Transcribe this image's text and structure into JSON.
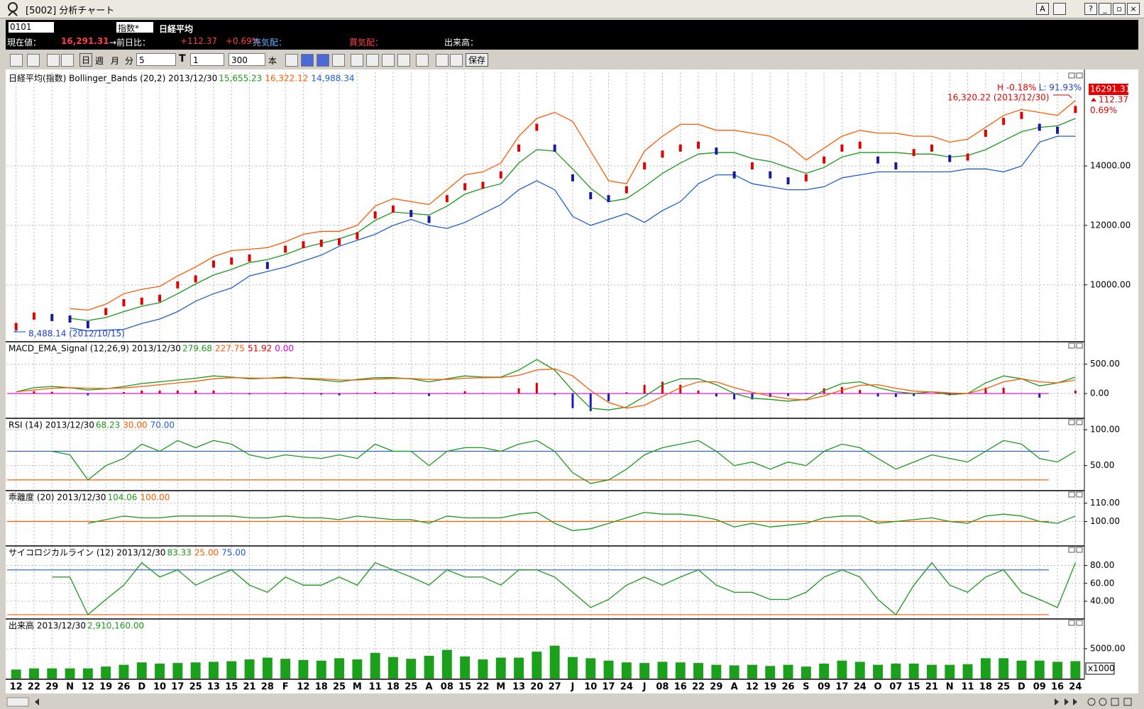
{
  "window": {
    "title": "[5002] 分析チャート",
    "buttons": [
      "A",
      "?"
    ]
  },
  "infobar": {
    "code": "0101",
    "index_select": "指数*",
    "name": "日経平均",
    "price_label": "現在値：",
    "price": "16,291.31",
    "change_label": "→前日比：",
    "change": "+112.37",
    "change_pct": "+0.69%",
    "ask_label": "売気配：",
    "bid_label": "買気配：",
    "volume_label": "出来高："
  },
  "toolbar": {
    "day": "日",
    "week": "週",
    "month": "月",
    "minute": "分",
    "minute_value": "5",
    "t_icon": "T",
    "t_value": "1",
    "count": "300",
    "count_unit": "本",
    "save": "保存"
  },
  "chart_data": [
    {
      "type": "line",
      "title": "日経平均(指数) Bollinger_Bands (20,2) 2013/12/30",
      "header_values": [
        {
          "label": "15,655.23",
          "color": "#1a9a1a"
        },
        {
          "label": "16,322.12",
          "color": "#ff5a00"
        },
        {
          "label": "14,988.34",
          "color": "#1e5fd0"
        }
      ],
      "annotations": [
        {
          "label": "H -0.18%",
          "color": "#e00000"
        },
        {
          "label": "L: 91.93%",
          "color": "#1e3fd0"
        },
        {
          "label": "16,320.22 (2013/12/30)",
          "color": "#e00000"
        },
        {
          "label": "8,488.14 (2012/10/15)",
          "color": "#1e3fd0"
        }
      ],
      "price_tag": "16291.31",
      "tag_change": "112.37",
      "tag_pct": "0.69%",
      "ylim": [
        8110,
        17150
      ],
      "yticks": [
        {
          "value": 10000,
          "label": "10000.00"
        },
        {
          "value": 12000,
          "label": "12000.00"
        },
        {
          "value": 14000,
          "label": "14000.00"
        }
      ],
      "grid": true,
      "series": [
        {
          "type": "line",
          "color": "#ff5a00",
          "values": [
            null,
            null,
            null,
            9200,
            9150,
            9350,
            9700,
            9850,
            9950,
            10300,
            10600,
            10950,
            11150,
            11200,
            11250,
            11450,
            11700,
            11800,
            11800,
            12000,
            12650,
            12900,
            12800,
            12700,
            13200,
            13700,
            13800,
            14100,
            15000,
            15600,
            15800,
            15500,
            14500,
            13500,
            13400,
            14500,
            15000,
            15400,
            15400,
            15200,
            15200,
            15100,
            15000,
            14700,
            14200,
            14600,
            15000,
            15200,
            15100,
            15100,
            15000,
            15000,
            14800,
            14900,
            15300,
            15700,
            15900,
            15800,
            15700,
            16200
          ]
        },
        {
          "type": "line",
          "color": "#1e5fd0",
          "values": [
            null,
            null,
            null,
            8550,
            8450,
            8480,
            8500,
            8700,
            8850,
            9100,
            9450,
            9700,
            9900,
            10300,
            10450,
            10600,
            10800,
            11000,
            11300,
            11500,
            11700,
            12000,
            12200,
            12000,
            11900,
            12100,
            12400,
            12700,
            13200,
            13500,
            13200,
            12300,
            12000,
            12200,
            12400,
            12100,
            12500,
            12800,
            13400,
            13700,
            13700,
            13400,
            13300,
            13200,
            13200,
            13300,
            13600,
            13700,
            13800,
            13800,
            13800,
            13800,
            13800,
            13900,
            13900,
            13800,
            14000,
            14800,
            15000,
            15000
          ]
        },
        {
          "type": "line",
          "color": "#1a9a1a",
          "values": [
            null,
            null,
            null,
            8870,
            8800,
            8900,
            9100,
            9280,
            9400,
            9700,
            10030,
            10330,
            10520,
            10750,
            10850,
            11020,
            11250,
            11400,
            11550,
            11750,
            12170,
            12450,
            12400,
            12350,
            12650,
            13050,
            13250,
            13400,
            14100,
            14550,
            14500,
            13900,
            13250,
            12800,
            12900,
            13300,
            13750,
            14100,
            14400,
            14450,
            14450,
            14250,
            14150,
            13950,
            13750,
            13950,
            14300,
            14450,
            14450,
            14450,
            14400,
            14400,
            14300,
            14350,
            14550,
            14850,
            15150,
            15300,
            15350,
            15600
          ]
        },
        {
          "type": "point",
          "color": "#e00000",
          "negative_color": "#1a1aa0",
          "values": [
            8600,
            8950,
            8900,
            8850,
            8660,
            9100,
            9400,
            9450,
            9550,
            10000,
            10200,
            10700,
            10800,
            10900,
            10650,
            11200,
            11350,
            11400,
            11450,
            11650,
            12350,
            12550,
            12400,
            12200,
            12900,
            13300,
            13350,
            13700,
            14600,
            15300,
            14600,
            13600,
            13000,
            12900,
            13200,
            14000,
            14400,
            14600,
            14700,
            14500,
            13700,
            14000,
            13700,
            13500,
            13600,
            14200,
            14600,
            14700,
            14200,
            14000,
            14450,
            14600,
            14250,
            14300,
            15100,
            15500,
            15700,
            15300,
            15200,
            15900
          ]
        }
      ]
    },
    {
      "type": "line",
      "title": "MACD_EMA_Signal (12,26,9) 2013/12/30",
      "header_values": [
        {
          "label": "279.68",
          "color": "#1a9a1a"
        },
        {
          "label": "227.75",
          "color": "#ff5a00"
        },
        {
          "label": "51.92",
          "color": "#e00000"
        }
      ],
      "levels": [
        {
          "value": 0,
          "label": "0.00",
          "color": "#e000e0"
        }
      ],
      "ylim": [
        -410,
        870
      ],
      "yticks": [
        {
          "value": 0,
          "label": "0.00"
        },
        {
          "value": 500,
          "label": "500.00"
        }
      ],
      "grid": true,
      "series": [
        {
          "type": "bar",
          "color": "#e00000",
          "negative_color": "#1a1acc",
          "values": [
            0,
            40,
            30,
            0,
            -30,
            -5,
            25,
            50,
            50,
            50,
            50,
            50,
            10,
            -15,
            0,
            15,
            -10,
            -20,
            -30,
            10,
            25,
            15,
            -5,
            -40,
            10,
            40,
            10,
            5,
            90,
            180,
            -20,
            -250,
            -300,
            -130,
            20,
            150,
            200,
            150,
            50,
            -50,
            -100,
            -100,
            -60,
            -40,
            10,
            90,
            110,
            60,
            -50,
            -60,
            -40,
            0,
            -30,
            0,
            100,
            100,
            0,
            -70,
            0,
            50
          ]
        },
        {
          "type": "line",
          "color": "#1a9a1a",
          "values": [
            30,
            100,
            120,
            100,
            60,
            80,
            120,
            170,
            200,
            230,
            260,
            300,
            280,
            250,
            260,
            280,
            250,
            230,
            200,
            240,
            270,
            270,
            250,
            200,
            250,
            300,
            280,
            280,
            400,
            580,
            400,
            50,
            -250,
            -280,
            -230,
            -50,
            150,
            250,
            250,
            150,
            0,
            -80,
            -100,
            -130,
            -100,
            50,
            170,
            200,
            100,
            30,
            0,
            30,
            -20,
            0,
            180,
            300,
            250,
            130,
            180,
            280
          ]
        },
        {
          "type": "line",
          "color": "#ff5a00",
          "values": [
            30,
            60,
            90,
            100,
            90,
            85,
            95,
            120,
            150,
            180,
            210,
            250,
            270,
            265,
            260,
            265,
            260,
            250,
            230,
            230,
            245,
            255,
            255,
            240,
            240,
            260,
            270,
            275,
            310,
            400,
            420,
            300,
            50,
            -150,
            -250,
            -200,
            -50,
            100,
            200,
            200,
            100,
            20,
            -40,
            -90,
            -110,
            -40,
            60,
            140,
            150,
            90,
            40,
            30,
            10,
            0,
            80,
            200,
            250,
            200,
            180,
            230
          ]
        }
      ]
    },
    {
      "type": "line",
      "title": "RSI (14) 2013/12/30",
      "header_values": [
        {
          "label": "68.23",
          "color": "#1a9a1a"
        }
      ],
      "levels": [
        {
          "value": 30,
          "label": "30.00",
          "color": "#ff5a00"
        },
        {
          "value": 70,
          "label": "70.00",
          "color": "#1e5fd0"
        }
      ],
      "ylim": [
        16,
        115
      ],
      "yticks": [
        {
          "value": 50,
          "label": "50.00"
        },
        {
          "value": 100,
          "label": "100.00"
        }
      ],
      "grid": true,
      "series": [
        {
          "type": "line",
          "color": "#1a9a1a",
          "values": [
            null,
            null,
            70,
            65,
            30,
            50,
            60,
            80,
            70,
            85,
            75,
            85,
            80,
            65,
            60,
            65,
            62,
            60,
            65,
            60,
            80,
            70,
            70,
            50,
            70,
            75,
            75,
            70,
            80,
            85,
            70,
            40,
            25,
            30,
            45,
            65,
            75,
            80,
            85,
            70,
            50,
            55,
            45,
            55,
            50,
            70,
            80,
            75,
            60,
            45,
            55,
            65,
            60,
            55,
            70,
            85,
            80,
            60,
            55,
            70
          ]
        }
      ]
    },
    {
      "type": "line",
      "title": "乖離度 (20) 2013/12/30",
      "header_values": [
        {
          "label": "104.06",
          "color": "#1a9a1a"
        }
      ],
      "levels": [
        {
          "value": 100,
          "label": "100.00",
          "color": "#ff5a00"
        }
      ],
      "ylim": [
        87,
        116.5
      ],
      "yticks": [
        {
          "value": 100,
          "label": "100.00"
        },
        {
          "value": 110,
          "label": "110.00"
        }
      ],
      "grid": true,
      "series": [
        {
          "type": "line",
          "color": "#1a9a1a",
          "values": [
            null,
            null,
            null,
            null,
            99,
            101,
            103,
            102,
            102,
            103,
            103,
            103,
            103,
            102,
            102,
            103,
            102,
            102,
            101,
            103,
            102,
            101,
            101,
            99,
            103,
            102,
            102,
            102,
            104,
            105,
            99,
            95,
            96,
            99,
            102,
            105,
            104,
            104,
            103,
            101,
            97,
            99,
            97,
            98,
            99,
            102,
            103,
            103,
            99,
            100,
            101,
            102,
            100,
            99,
            103,
            104,
            103,
            100,
            99,
            103
          ]
        }
      ]
    },
    {
      "type": "line",
      "title": "サイコロジカルライン (12) 2013/12/30",
      "header_values": [
        {
          "label": "83.33",
          "color": "#1a9a1a"
        }
      ],
      "levels": [
        {
          "value": 25,
          "label": "25.00",
          "color": "#ff5a00"
        },
        {
          "value": 75,
          "label": "75.00",
          "color": "#1e5fd0"
        }
      ],
      "ylim": [
        21,
        101
      ],
      "yticks": [
        {
          "value": 40,
          "label": "40.00"
        },
        {
          "value": 60,
          "label": "60.00"
        },
        {
          "value": 80,
          "label": "80.00"
        }
      ],
      "grid": true,
      "series": [
        {
          "type": "line",
          "color": "#1a9a1a",
          "values": [
            null,
            null,
            67,
            67,
            25,
            42,
            58,
            83,
            67,
            75,
            58,
            67,
            75,
            58,
            50,
            67,
            58,
            58,
            67,
            58,
            83,
            75,
            67,
            58,
            75,
            67,
            67,
            58,
            75,
            75,
            67,
            50,
            33,
            42,
            58,
            67,
            58,
            67,
            75,
            58,
            50,
            50,
            42,
            42,
            50,
            67,
            75,
            67,
            42,
            25,
            58,
            83,
            58,
            50,
            67,
            75,
            50,
            42,
            33,
            83
          ]
        }
      ]
    },
    {
      "type": "bar",
      "title": "出来高 2013/12/30",
      "header_values": [
        {
          "label": "2,910,160.00",
          "color": "#1a9a1a"
        }
      ],
      "unit": "x1000",
      "ylim": [
        0,
        9860
      ],
      "yticks": [
        {
          "value": 5000,
          "label": "5000.00"
        }
      ],
      "grid": true,
      "categories": [
        "12",
        "22",
        "29",
        "N",
        "12",
        "19",
        "26",
        "D",
        "10",
        "17",
        "25",
        "13",
        "15",
        "21",
        "28",
        "F",
        "12",
        "18",
        "25",
        "M",
        "11",
        "18",
        "25",
        "A",
        "08",
        "15",
        "22",
        "M",
        "13",
        "20",
        "27",
        "J",
        "10",
        "17",
        "24",
        "J",
        "08",
        "16",
        "22",
        "29",
        "A",
        "12",
        "19",
        "26",
        "S",
        "09",
        "17",
        "24",
        "O",
        "07",
        "15",
        "21",
        "N",
        "11",
        "18",
        "25",
        "D",
        "09",
        "16",
        "24"
      ],
      "series": [
        {
          "type": "bar",
          "color": "#1aa01a",
          "values": [
            1500,
            1700,
            1700,
            1700,
            1700,
            2000,
            2300,
            2700,
            2500,
            2600,
            2700,
            2800,
            2900,
            3200,
            3500,
            3300,
            3100,
            3000,
            3400,
            3200,
            4300,
            3600,
            3300,
            3800,
            4800,
            3700,
            3200,
            3500,
            3500,
            4500,
            5500,
            3600,
            3400,
            3000,
            2700,
            2600,
            2800,
            2700,
            2600,
            2300,
            2200,
            2300,
            2100,
            2300,
            2000,
            2500,
            3000,
            2800,
            2300,
            2500,
            2500,
            2300,
            2300,
            2400,
            3400,
            3400,
            3000,
            3000,
            2800,
            2910
          ]
        }
      ]
    }
  ]
}
